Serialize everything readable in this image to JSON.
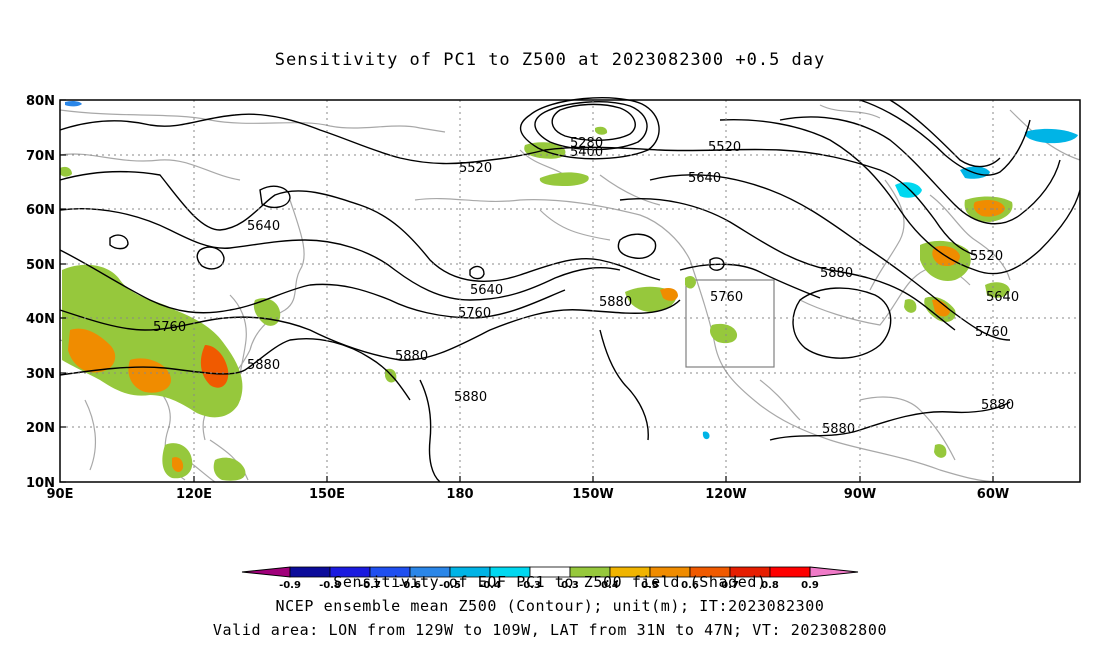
{
  "title": "Sensitivity of PC1 to Z500 at 2023082300 +0.5 day",
  "lat_labels": [
    "80N",
    "70N",
    "60N",
    "50N",
    "40N",
    "30N",
    "20N",
    "10N"
  ],
  "lon_labels": [
    "90E",
    "120E",
    "150E",
    "180",
    "150W",
    "120W",
    "90W",
    "60W"
  ],
  "contour_labels": [
    {
      "text": "5280"
    },
    {
      "text": "5400"
    },
    {
      "text": "5520"
    },
    {
      "text": "5520"
    },
    {
      "text": "5640"
    },
    {
      "text": "5640"
    },
    {
      "text": "5640"
    },
    {
      "text": "5760"
    },
    {
      "text": "5760"
    },
    {
      "text": "5880"
    },
    {
      "text": "5880"
    },
    {
      "text": "5880"
    },
    {
      "text": "5760"
    },
    {
      "text": "5880"
    },
    {
      "text": "5520"
    },
    {
      "text": "5640"
    },
    {
      "text": "5760"
    },
    {
      "text": "5880"
    },
    {
      "text": "5880"
    }
  ],
  "colorbar": {
    "ticks": [
      "-0.9",
      "-0.8",
      "-0.7",
      "-0.6",
      "-0.5",
      "-0.4",
      "-0.3",
      "0.3",
      "0.4",
      "0.5",
      "0.6",
      "0.7",
      "0.8",
      "0.9"
    ],
    "colors": [
      "#a0007a",
      "#0b0b9a",
      "#1a1adf",
      "#1f4ff0",
      "#2a86e8",
      "#00b4e6",
      "#00d8f0",
      "#ffffff",
      "#96c83c",
      "#f0b400",
      "#f08c00",
      "#f05a00",
      "#e61e00",
      "#ff0000",
      "#f07ac8"
    ]
  },
  "colors": {
    "contour": "#000000",
    "coast": "#a8a8a8",
    "grid": "#888888"
  },
  "footer": {
    "line1": "Sensitivity of EOF PC1 to Z500 field (Shaded)",
    "line2": "NCEP ensemble mean Z500 (Contour); unit(m); IT:2023082300",
    "line3": "Valid area: LON from 129W to 109W, LAT from 31N to 47N; VT: 2023082800"
  }
}
